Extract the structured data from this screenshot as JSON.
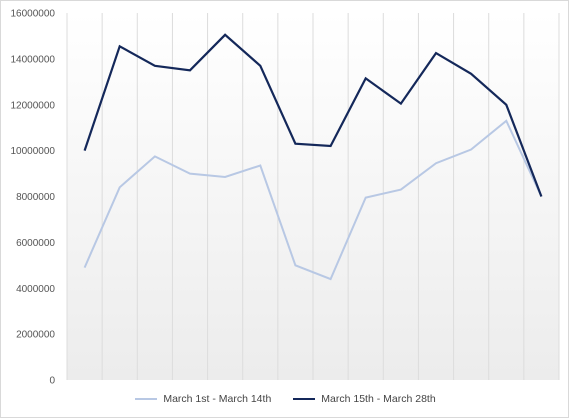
{
  "chart_data": {
    "type": "line",
    "title": "",
    "xlabel": "",
    "ylabel": "",
    "ylim": [
      0,
      16000000
    ],
    "yticks": [
      0,
      2000000,
      4000000,
      6000000,
      8000000,
      10000000,
      12000000,
      14000000,
      16000000
    ],
    "ytick_labels": [
      "0",
      "2000000",
      "4000000",
      "6000000",
      "8000000",
      "10000000",
      "12000000",
      "14000000",
      "16000000"
    ],
    "x": [
      1,
      2,
      3,
      4,
      5,
      6,
      7,
      8,
      9,
      10,
      11,
      12,
      13,
      14
    ],
    "grid": "vertical",
    "legend_position": "bottom",
    "series": [
      {
        "name": "March 1st - March 14th",
        "color": "#b8c8e4",
        "values": [
          4900000,
          8400000,
          9750000,
          9000000,
          8850000,
          9350000,
          5000000,
          4400000,
          7950000,
          8300000,
          9450000,
          10050000,
          11300000,
          8000000
        ]
      },
      {
        "name": "March 15th - March 28th",
        "color": "#14285a",
        "values": [
          10000000,
          14550000,
          13700000,
          13500000,
          15050000,
          13700000,
          10300000,
          10200000,
          13150000,
          12050000,
          14250000,
          13350000,
          12000000,
          8000000
        ]
      }
    ]
  }
}
